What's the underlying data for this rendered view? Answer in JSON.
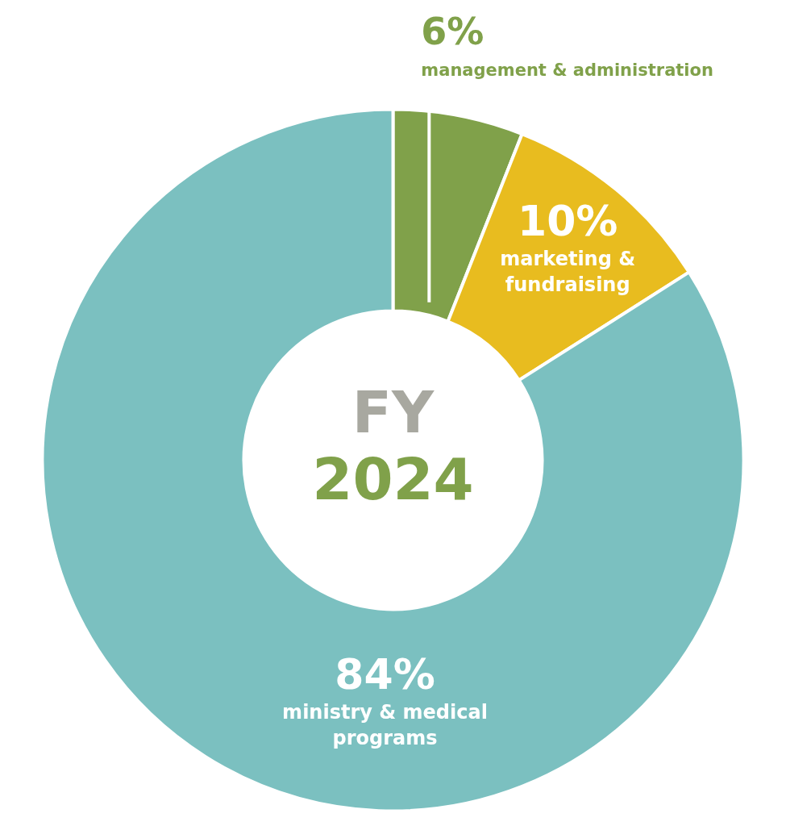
{
  "chart_data": {
    "type": "donut",
    "categories": [
      "management & administration",
      "marketing & fundraising",
      "ministry & medical programs"
    ],
    "values": [
      6,
      10,
      84
    ],
    "colors": [
      "#80a14a",
      "#e8bc1f",
      "#7bc0c0"
    ],
    "value_labels": [
      "6%",
      "10%",
      "84%"
    ],
    "annotations": [
      "FY",
      "2024"
    ]
  }
}
